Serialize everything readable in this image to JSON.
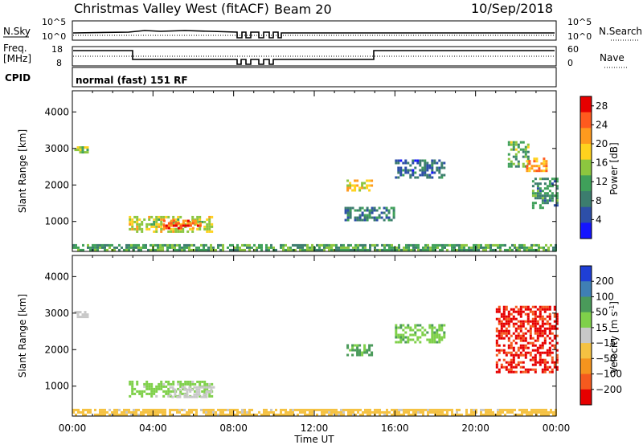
{
  "header": {
    "title": "Christmas Valley West (fitACF)",
    "beam": "Beam 20",
    "date": "10/Sep/2018"
  },
  "labels": {
    "nsky": "N.Sky",
    "nsearch": "N.Search",
    "freq": "Freq.",
    "mhz": "[MHz]",
    "nave": "Nave",
    "cpid": "CPID",
    "cpid_value": "normal (fast) 151 RF",
    "time_axis": "Time UT",
    "slant_range": "Slant Range [km]",
    "power_label": "Power [dB]",
    "velocity_label": "Velocity [m s",
    "velocity_exp": "-1",
    "velocity_close": "]"
  },
  "noise_panel": {
    "left_ticks": [
      "10^5",
      "10^0"
    ],
    "right_ticks": [
      "10^5",
      "10^0"
    ]
  },
  "freq_panel": {
    "left_ticks": [
      "18",
      "8"
    ],
    "right_ticks": [
      "60",
      "0"
    ]
  },
  "colors": {
    "power": [
      "#1414ff",
      "#2d4fa8",
      "#3c7d6e",
      "#3fa05a",
      "#8cc63f",
      "#ffd21e",
      "#ff9a1e",
      "#ff5a1e",
      "#e60000"
    ],
    "velocity": [
      "#1f3fd6",
      "#3f7fb4",
      "#4a9a5a",
      "#7fd04a",
      "#c8c8c8",
      "#f5c242",
      "#f5941e",
      "#f55a1e",
      "#e60000"
    ]
  },
  "chart_data": [
    {
      "type": "heatmap",
      "title": "Power",
      "ylabel": "Slant Range [km]",
      "xlabel": "Time UT",
      "x_ticks": [
        "00:00",
        "04:00",
        "08:00",
        "12:00",
        "16:00",
        "20:00",
        "00:00"
      ],
      "y_ticks": [
        1000,
        2000,
        3000,
        4000
      ],
      "ylim": [
        180,
        4580
      ],
      "colorbar_label": "Power [dB]",
      "colorbar_ticks": [
        4,
        8,
        12,
        16,
        20,
        24,
        28
      ],
      "colorbar_range": [
        0,
        30
      ],
      "regions": [
        {
          "t": [
            2.8,
            6.9
          ],
          "r": [
            720,
            1150
          ],
          "v": 17
        },
        {
          "t": [
            4.5,
            6.5
          ],
          "r": [
            800,
            1050
          ],
          "v": 25
        },
        {
          "t": [
            0.0,
            24.0
          ],
          "r": [
            200,
            380
          ],
          "v": 12
        },
        {
          "t": [
            0.1,
            0.7
          ],
          "r": [
            2920,
            3060
          ],
          "v": 14
        },
        {
          "t": [
            13.6,
            14.8
          ],
          "r": [
            1850,
            2150
          ],
          "v": 18
        },
        {
          "t": [
            13.5,
            16.0
          ],
          "r": [
            1050,
            1400
          ],
          "v": 9
        },
        {
          "t": [
            21.6,
            22.6
          ],
          "r": [
            2500,
            3200
          ],
          "v": 13
        },
        {
          "t": [
            22.5,
            23.5
          ],
          "r": [
            2400,
            2750
          ],
          "v": 21
        },
        {
          "t": [
            22.8,
            24.0
          ],
          "r": [
            1400,
            2200
          ],
          "v": 10
        },
        {
          "t": [
            16.0,
            18.5
          ],
          "r": [
            2200,
            2700
          ],
          "v": 7
        }
      ]
    },
    {
      "type": "heatmap",
      "title": "Velocity",
      "ylabel": "Slant Range [km]",
      "xlabel": "Time UT",
      "x_ticks": [
        "00:00",
        "04:00",
        "08:00",
        "12:00",
        "16:00",
        "20:00",
        "00:00"
      ],
      "y_ticks": [
        1000,
        2000,
        3000,
        4000
      ],
      "ylim": [
        180,
        4580
      ],
      "colorbar_label": "Velocity [m s-1]",
      "colorbar_ticks": [
        200,
        100,
        50,
        15,
        -15,
        -50,
        -100,
        -200
      ],
      "regions": [
        {
          "t": [
            2.8,
            6.9
          ],
          "r": [
            720,
            1150
          ],
          "v": 30
        },
        {
          "t": [
            4.8,
            7.0
          ],
          "r": [
            720,
            1000
          ],
          "v": 0
        },
        {
          "t": [
            0.0,
            24.0
          ],
          "r": [
            200,
            380
          ],
          "v": -30
        },
        {
          "t": [
            0.1,
            0.7
          ],
          "r": [
            2920,
            3060
          ],
          "v": 0
        },
        {
          "t": [
            13.6,
            14.8
          ],
          "r": [
            1850,
            2150
          ],
          "v": 60
        },
        {
          "t": [
            21.0,
            24.0
          ],
          "r": [
            1400,
            3200
          ],
          "v": -220
        },
        {
          "t": [
            16.0,
            18.5
          ],
          "r": [
            2200,
            2700
          ],
          "v": 40
        }
      ]
    }
  ]
}
